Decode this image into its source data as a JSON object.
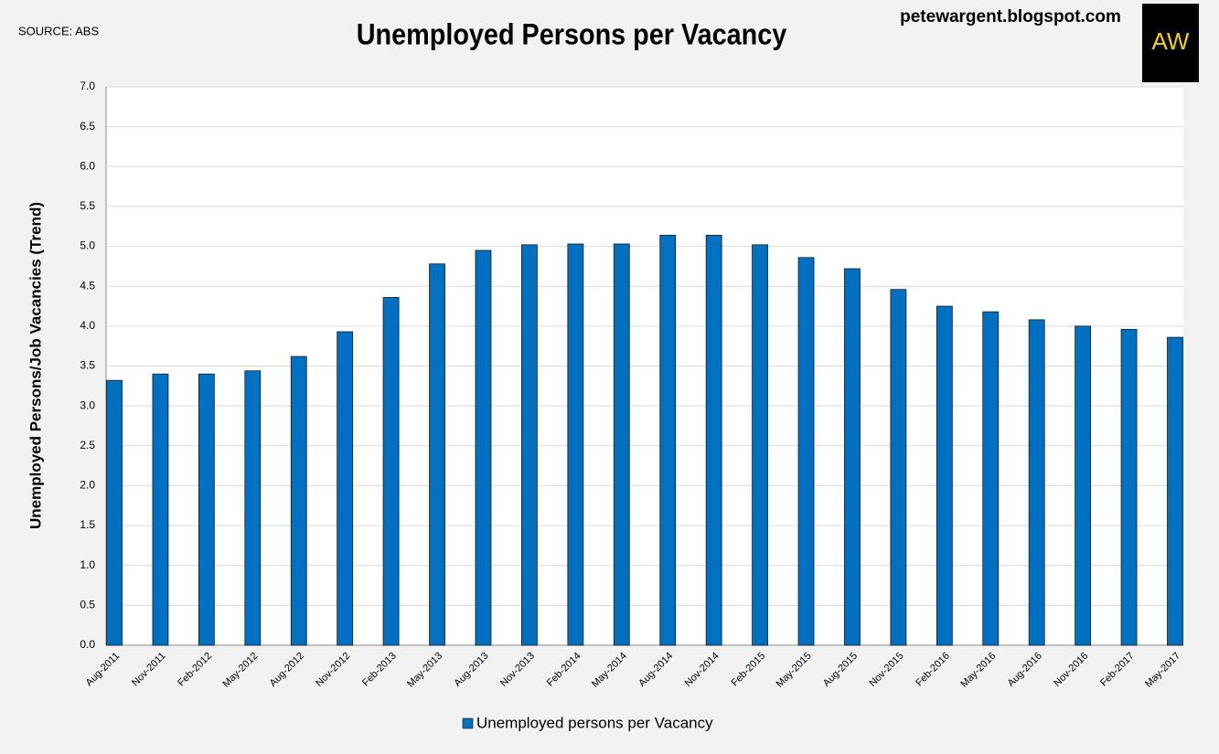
{
  "chart_data": {
    "type": "bar",
    "title": "Unemployed Persons per Vacancy",
    "annotations": [
      "SOURCE: ABS",
      "petewargent.blogspot.com"
    ],
    "logo": "AW",
    "y_label": "Unemployed Persons/Job Vacancies (Trend)",
    "categories": [
      "Aug-2011",
      "Nov-2011",
      "Feb-2012",
      "May-2012",
      "Aug-2012",
      "Nov-2012",
      "Feb-2013",
      "May-2013",
      "Aug-2013",
      "Nov-2013",
      "Feb-2014",
      "May-2014",
      "Aug-2014",
      "Nov-2014",
      "Feb-2015",
      "May-2015",
      "Aug-2015",
      "Nov-2015",
      "Feb-2016",
      "May-2016",
      "Aug-2016",
      "Nov-2016",
      "Feb-2017",
      "May-2017"
    ],
    "series": [
      {
        "name": "Unemployed persons per Vacancy",
        "color": "#0070c0",
        "values": [
          3.32,
          3.4,
          3.4,
          3.44,
          3.62,
          3.93,
          4.36,
          4.78,
          4.95,
          5.02,
          5.03,
          5.03,
          5.14,
          5.14,
          5.02,
          4.86,
          4.72,
          4.46,
          4.25,
          4.18,
          4.08,
          4.0,
          3.96,
          3.86
        ]
      }
    ],
    "ylim": [
      0,
      7
    ],
    "yticks": [
      {
        "value": 0,
        "label": "0.0"
      },
      0.5,
      {
        "value": 1,
        "label": "1.0"
      },
      1.5,
      {
        "value": 2,
        "label": "2.0"
      },
      2.5,
      {
        "value": 3,
        "label": "3.0"
      },
      3.5,
      {
        "value": 4,
        "label": "4.0"
      },
      4.5,
      {
        "value": 5,
        "label": "5.0"
      },
      5.5,
      {
        "value": 6,
        "label": "6.0"
      },
      6.5,
      {
        "value": 7,
        "label": "7.0"
      }
    ],
    "grid": true
  }
}
